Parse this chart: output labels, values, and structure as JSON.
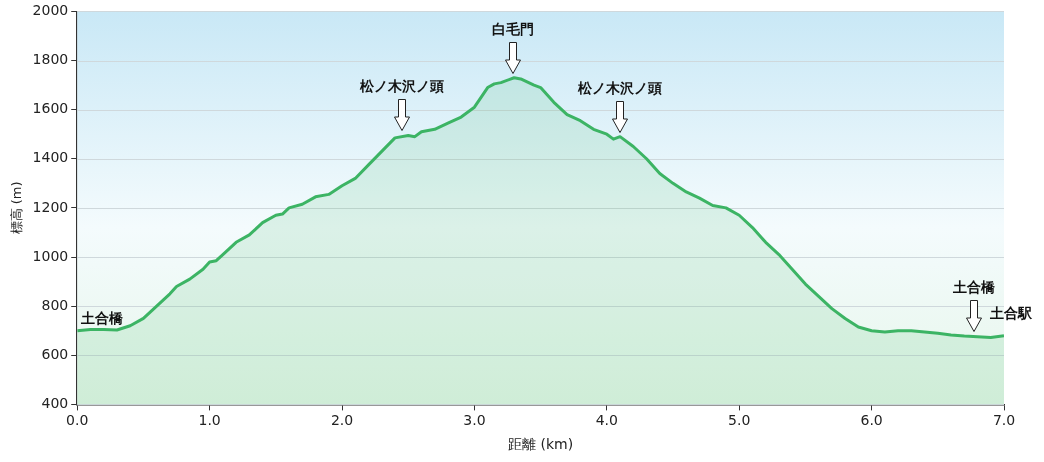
{
  "chart_data": {
    "type": "area",
    "xlabel": "距離 (km)",
    "ylabel": "標高 (m)",
    "x": [
      0.0,
      0.1,
      0.2,
      0.3,
      0.4,
      0.5,
      0.6,
      0.7,
      0.75,
      0.85,
      0.95,
      1.0,
      1.05,
      1.1,
      1.2,
      1.3,
      1.4,
      1.5,
      1.55,
      1.6,
      1.7,
      1.8,
      1.9,
      2.0,
      2.1,
      2.2,
      2.3,
      2.4,
      2.5,
      2.55,
      2.6,
      2.7,
      2.8,
      2.9,
      3.0,
      3.05,
      3.1,
      3.15,
      3.2,
      3.3,
      3.35,
      3.45,
      3.5,
      3.6,
      3.7,
      3.8,
      3.9,
      4.0,
      4.05,
      4.1,
      4.2,
      4.3,
      4.4,
      4.5,
      4.6,
      4.7,
      4.8,
      4.9,
      5.0,
      5.1,
      5.2,
      5.3,
      5.4,
      5.5,
      5.6,
      5.7,
      5.8,
      5.9,
      6.0,
      6.1,
      6.2,
      6.3,
      6.4,
      6.5,
      6.6,
      6.7,
      6.8,
      6.9,
      7.0
    ],
    "series": [
      {
        "color": "#3cb464",
        "values": [
          700,
          705,
          705,
          703,
          720,
          750,
          800,
          850,
          880,
          910,
          950,
          980,
          985,
          1010,
          1060,
          1090,
          1140,
          1170,
          1175,
          1200,
          1215,
          1245,
          1255,
          1290,
          1320,
          1375,
          1430,
          1485,
          1495,
          1490,
          1510,
          1520,
          1545,
          1570,
          1610,
          1650,
          1690,
          1705,
          1710,
          1730,
          1725,
          1700,
          1690,
          1630,
          1580,
          1555,
          1520,
          1500,
          1480,
          1490,
          1450,
          1400,
          1340,
          1300,
          1265,
          1240,
          1210,
          1200,
          1170,
          1120,
          1060,
          1010,
          950,
          890,
          840,
          790,
          750,
          715,
          700,
          695,
          700,
          700,
          695,
          690,
          683,
          678,
          675,
          672,
          680
        ]
      }
    ],
    "xlim": [
      0,
      7
    ],
    "ylim": [
      400,
      2000
    ],
    "xticks": [
      {
        "value": 0,
        "label": "0.0"
      },
      {
        "value": 1,
        "label": "1.0"
      },
      {
        "value": 2,
        "label": "2.0"
      },
      {
        "value": 3,
        "label": "3.0"
      },
      {
        "value": 4,
        "label": "4.0"
      },
      {
        "value": 5,
        "label": "5.0"
      },
      {
        "value": 6,
        "label": "6.0"
      },
      {
        "value": 7,
        "label": "7.0"
      }
    ],
    "yticks": [
      400,
      600,
      800,
      1000,
      1200,
      1400,
      1600,
      1800,
      2000
    ],
    "grid": "y",
    "annotations": [
      {
        "text": "土合橋",
        "x": 0,
        "y": 700
      },
      {
        "text": "松ノ木沢ノ頭",
        "x": 2.45,
        "y": 1495
      },
      {
        "text": "白毛門",
        "x": 3.29,
        "y": 1730
      },
      {
        "text": "松ノ木沢ノ頭",
        "x": 4.1,
        "y": 1490
      },
      {
        "text": "土合橋",
        "x": 6.77,
        "y": 677
      },
      {
        "text": "土合駅",
        "x": 7.0,
        "y": 680
      }
    ]
  }
}
